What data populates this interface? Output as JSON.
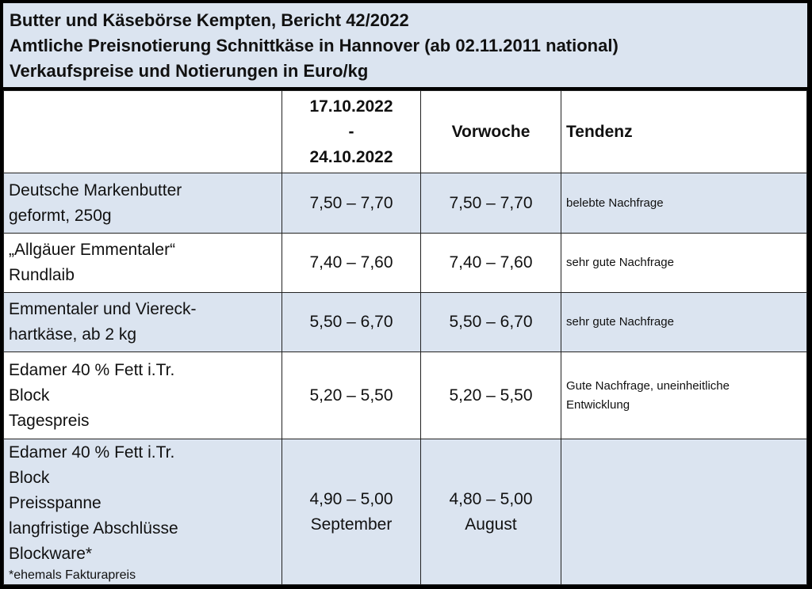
{
  "title": {
    "line1": "Butter und Käsebörse Kempten, Bericht 42/2022",
    "line2": "Amtliche Preisnotierung Schnittkäse in Hannover (ab 02.11.2011 national)",
    "line3": "Verkaufspreise und Notierungen in Euro/kg"
  },
  "header": {
    "current_from": "17.10.2022",
    "current_sep": "-",
    "current_to": "24.10.2022",
    "previous": "Vorwoche",
    "trend": "Tendenz"
  },
  "rows": [
    {
      "label1": "Deutsche Markenbutter",
      "label2": "geformt, 250g",
      "current": "7,50 – 7,70",
      "previous": "7,50 – 7,70",
      "trend": "belebte Nachfrage"
    },
    {
      "label1": "„Allgäuer Emmentaler“",
      "label2": "Rundlaib",
      "current": "7,40 – 7,60",
      "previous": "7,40 – 7,60",
      "trend": "sehr gute Nachfrage"
    },
    {
      "label1": "Emmentaler und Viereck-",
      "label2": "hartkäse, ab 2 kg",
      "current": "5,50 – 6,70",
      "previous": "5,50 – 6,70",
      "trend": "sehr gute Nachfrage"
    },
    {
      "label1": "Edamer 40 % Fett i.Tr.",
      "label2": "Block",
      "label3": "Tagespreis",
      "current": "5,20 – 5,50",
      "previous": "5,20 – 5,50",
      "trend1": "Gute Nachfrage, uneinheitliche",
      "trend2": "Entwicklung"
    },
    {
      "label1": "Edamer 40 % Fett i.Tr.",
      "label2": "Block",
      "label3": "Preisspanne",
      "label4": "langfristige Abschlüsse",
      "label5": "Blockware*",
      "note": "*ehemals Fakturapreis",
      "current": "4,90 – 5,00",
      "current_period": "September",
      "previous": "4,80 – 5,00",
      "previous_period": "August",
      "trend": ""
    }
  ]
}
